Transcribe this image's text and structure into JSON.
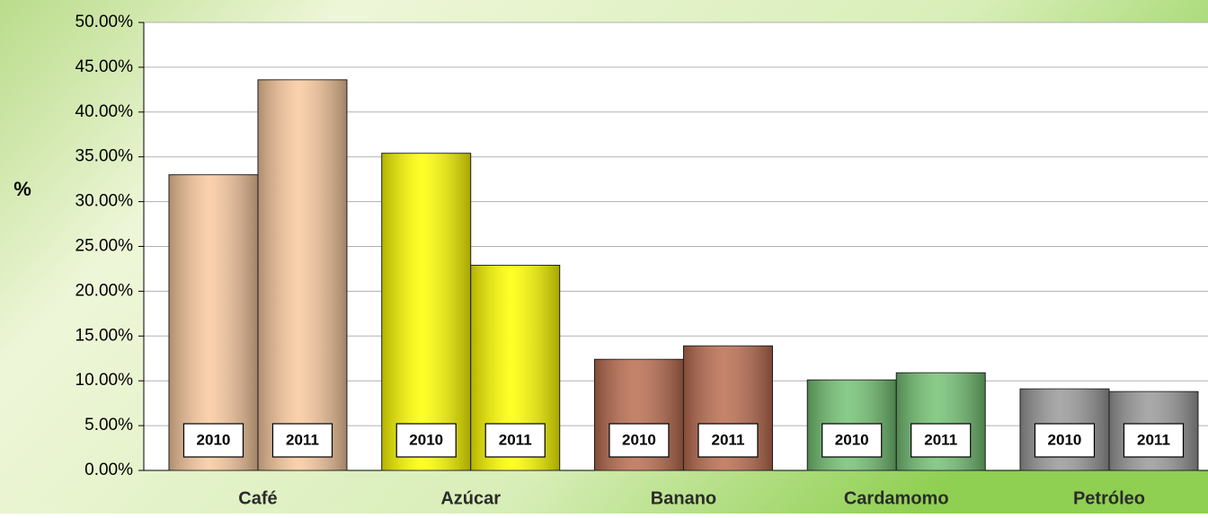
{
  "chart_data": {
    "type": "bar",
    "y_label": "%",
    "categories": [
      "Café",
      "Azúcar",
      "Banano",
      "Cardamomo",
      "Petróleo"
    ],
    "colors": [
      "#f9c99e",
      "#ffff00",
      "#bb6d50",
      "#74c274",
      "#9a9a9a"
    ],
    "series": [
      {
        "name": "2010",
        "values": [
          33.0,
          35.4,
          12.4,
          10.1,
          9.1
        ]
      },
      {
        "name": "2011",
        "values": [
          43.6,
          22.9,
          13.9,
          10.9,
          8.8
        ]
      }
    ],
    "ylim": [
      0,
      50
    ],
    "yticks": [
      {
        "value": 0,
        "label": "0.00%"
      },
      {
        "value": 5,
        "label": "5.00%"
      },
      {
        "value": 10,
        "label": "10.00%"
      },
      {
        "value": 15,
        "label": "15.00%"
      },
      {
        "value": 20,
        "label": "20.00%"
      },
      {
        "value": 25,
        "label": "25.00%"
      },
      {
        "value": 30,
        "label": "30.00%"
      },
      {
        "value": 35,
        "label": "35.00%"
      },
      {
        "value": 40,
        "label": "40.00%"
      },
      {
        "value": 45,
        "label": "45.00%"
      },
      {
        "value": 50,
        "label": "50.00%"
      }
    ],
    "grid": true
  }
}
